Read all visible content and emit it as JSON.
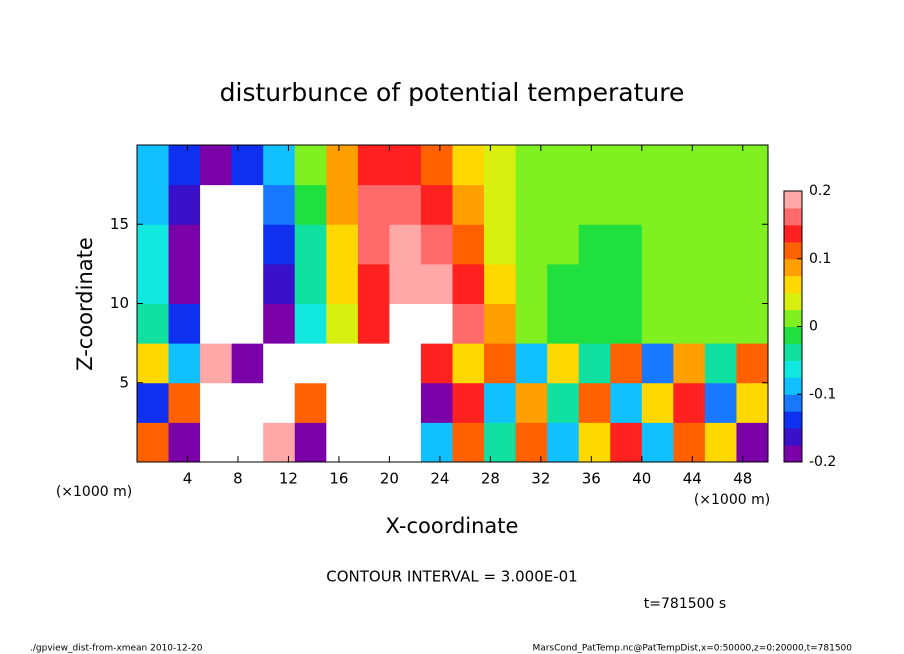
{
  "chart_data": {
    "type": "heatmap",
    "title": "disturbunce of potential temperature",
    "xlabel": "X-coordinate",
    "ylabel": "Z-coordinate",
    "xunit": "(×1000 m)",
    "yunit": "(×1000 m)",
    "xlim": [
      0,
      50
    ],
    "ylim": [
      0,
      20
    ],
    "xticks": [
      4,
      8,
      12,
      16,
      20,
      24,
      28,
      32,
      36,
      40,
      44,
      48
    ],
    "yticks": [
      5,
      10,
      15
    ],
    "x": [
      1.25,
      3.75,
      6.25,
      8.75,
      11.25,
      13.75,
      16.25,
      18.75,
      21.25,
      23.75,
      26.25,
      28.75,
      31.25,
      33.75,
      36.25,
      38.75,
      41.25,
      43.75,
      46.25,
      48.75
    ],
    "y": [
      1.25,
      3.75,
      6.25,
      8.75,
      11.25,
      13.75,
      16.25,
      18.75
    ],
    "z": [
      [
        0.1,
        -0.2,
        0.3,
        -0.25,
        0.2,
        -0.2,
        -0.3,
        -0.3,
        -0.25,
        -0.1,
        0.1,
        -0.05,
        0.1,
        -0.1,
        0.05,
        0.15,
        -0.1,
        0.12,
        0.05,
        -0.2
      ],
      [
        -0.15,
        0.1,
        0.25,
        -0.25,
        -0.3,
        0.1,
        -0.3,
        -0.3,
        -0.28,
        -0.2,
        0.15,
        -0.1,
        0.08,
        -0.05,
        0.12,
        -0.1,
        0.05,
        0.15,
        -0.12,
        0.05
      ],
      [
        0.05,
        -0.1,
        0.2,
        -0.2,
        -0.25,
        -0.3,
        -0.25,
        -0.3,
        -0.22,
        0.15,
        0.05,
        0.1,
        -0.1,
        0.05,
        -0.05,
        0.1,
        -0.12,
        0.08,
        -0.05,
        0.1
      ],
      [
        -0.05,
        -0.15,
        -0.25,
        -0.27,
        -0.2,
        -0.06,
        0.03,
        0.13,
        0.22,
        0.23,
        0.17,
        0.08,
        0.02,
        -0.01,
        -0.02,
        -0.01,
        0,
        0.01,
        0.01,
        0.01
      ],
      [
        -0.06,
        -0.18,
        -0.26,
        -0.26,
        -0.16,
        -0.04,
        0.05,
        0.15,
        0.2,
        0.19,
        0.13,
        0.05,
        0.01,
        -0.01,
        -0.02,
        -0.01,
        0,
        0.01,
        0,
        0
      ],
      [
        -0.07,
        -0.18,
        -0.26,
        -0.24,
        -0.14,
        -0.03,
        0.07,
        0.16,
        0.18,
        0.16,
        0.1,
        0.04,
        0.01,
        0,
        -0.01,
        -0.01,
        0,
        0.01,
        0,
        0
      ],
      [
        -0.08,
        -0.17,
        -0.25,
        -0.22,
        -0.12,
        -0.02,
        0.08,
        0.16,
        0.17,
        0.14,
        0.08,
        0.03,
        0.01,
        0,
        0,
        0,
        0,
        0.01,
        0,
        0
      ],
      [
        -0.08,
        -0.15,
        -0.2,
        -0.14,
        -0.08,
        0,
        0.08,
        0.13,
        0.15,
        0.12,
        0.07,
        0.03,
        0.01,
        0,
        0,
        0,
        0,
        0.01,
        0,
        0
      ]
    ],
    "clim": [
      -0.2,
      0.2
    ],
    "cticks": [
      -0.2,
      -0.1,
      0,
      0.1,
      0.2
    ],
    "colors": [
      "#7a00a8",
      "#3a10c8",
      "#1030f0",
      "#1878ff",
      "#10c0ff",
      "#10e8e0",
      "#10e0a0",
      "#20e040",
      "#80f020",
      "#d8f010",
      "#ffd800",
      "#ffa000",
      "#ff6000",
      "#ff2020",
      "#ff6a6a",
      "#ffa8a8"
    ],
    "over_color": "#ffffff",
    "under_color": "#ffffff",
    "note": "CONTOUR INTERVAL = 3.000E-01",
    "time": "t=781500 s",
    "footer_left": "./gpview_dist-from-xmean  2010-12-20",
    "footer_right": "MarsCond_PatTemp.nc@PatTempDist,x=0:50000,z=0:20000,t=781500"
  }
}
